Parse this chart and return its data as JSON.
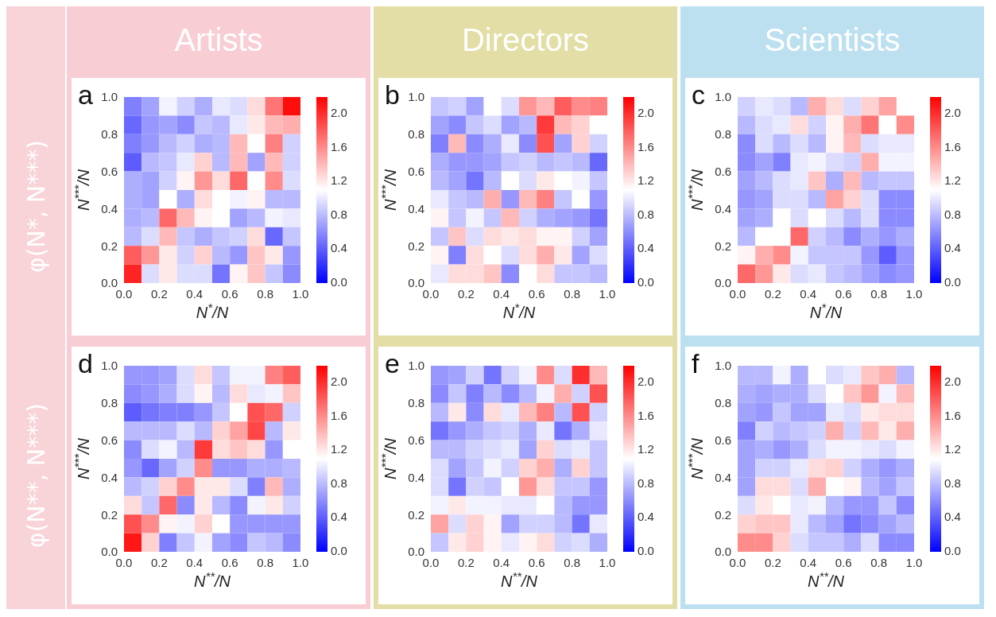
{
  "chart_data": [
    {
      "type": "heatmap",
      "title": "a",
      "subtitle": "Artists",
      "annotations": [
        "φ(N*, N***)"
      ],
      "xlabel": "N$^{*}$/N",
      "ylabel": "N$^{***}$/N",
      "xlim": [
        0,
        1
      ],
      "ylim": [
        0,
        1
      ],
      "xticks": [
        {
          "value": 0,
          "label": "0.0"
        },
        {
          "value": 0.2,
          "label": "0.2"
        },
        {
          "value": 0.4,
          "label": "0.4"
        },
        {
          "value": 0.6,
          "label": "0.6"
        },
        {
          "value": 0.8,
          "label": "0.8"
        },
        {
          "value": 1,
          "label": "1.0"
        }
      ],
      "yticks": [
        {
          "value": 0,
          "label": "0.0"
        },
        {
          "value": 0.2,
          "label": "0.2"
        },
        {
          "value": 0.4,
          "label": "0.4"
        },
        {
          "value": 0.6,
          "label": "0.6"
        },
        {
          "value": 0.8,
          "label": "0.8"
        },
        {
          "value": 1,
          "label": "1.0"
        }
      ],
      "clim": [
        0,
        2.2
      ],
      "cticks": [
        {
          "value": 0,
          "label": "0.0"
        },
        {
          "value": 0.4,
          "label": "0.4"
        },
        {
          "value": 0.8,
          "label": "0.8"
        },
        {
          "value": 1.2,
          "label": "1.2"
        },
        {
          "value": 1.6,
          "label": "1.6"
        },
        {
          "value": 2,
          "label": "2.0"
        }
      ],
      "cells": [
        [
          0.55,
          0.7,
          1.05,
          0.9,
          0.75,
          1.0,
          0.95,
          1.25,
          1.7,
          2.15
        ],
        [
          0.45,
          0.65,
          0.7,
          0.6,
          0.85,
          0.8,
          1.0,
          1.2,
          1.4,
          1.45
        ],
        [
          0.55,
          0.65,
          0.8,
          0.9,
          0.75,
          0.8,
          1.4,
          1.1,
          1.65,
          0.9
        ],
        [
          0.4,
          0.8,
          0.85,
          1.0,
          1.3,
          0.8,
          1.4,
          0.7,
          1.4,
          0.9
        ],
        [
          0.75,
          0.7,
          0.9,
          1.15,
          1.55,
          1.25,
          1.75,
          1.1,
          1.6,
          0.95
        ],
        [
          0.75,
          0.7,
          1.1,
          0.75,
          1.25,
          1.1,
          1.05,
          1.15,
          0.8,
          0.8
        ],
        [
          0.75,
          0.8,
          1.75,
          1.4,
          1.15,
          1.1,
          0.7,
          0.8,
          1.05,
          1.0
        ],
        [
          0.8,
          0.95,
          1.4,
          0.85,
          0.75,
          0.85,
          0.9,
          1.25,
          0.45,
          0.85
        ],
        [
          1.8,
          1.55,
          1.2,
          0.9,
          1.3,
          0.8,
          0.65,
          1.35,
          1.2,
          0.65
        ],
        [
          2.05,
          0.95,
          1.2,
          0.95,
          0.95,
          0.5,
          1.15,
          1.35,
          0.85,
          0.6
        ]
      ]
    },
    {
      "type": "heatmap",
      "title": "b",
      "subtitle": "Directors",
      "xlabel": "N$^{*}$/N",
      "ylabel": "N$^{***}$/N",
      "xlim": [
        0,
        1
      ],
      "ylim": [
        0,
        1
      ],
      "xticks": [
        {
          "value": 0,
          "label": "0.0"
        },
        {
          "value": 0.2,
          "label": "0.2"
        },
        {
          "value": 0.4,
          "label": "0.4"
        },
        {
          "value": 0.6,
          "label": "0.6"
        },
        {
          "value": 0.8,
          "label": "0.8"
        },
        {
          "value": 1,
          "label": "1.0"
        }
      ],
      "yticks": [
        {
          "value": 0,
          "label": "0.0"
        },
        {
          "value": 0.2,
          "label": "0.2"
        },
        {
          "value": 0.4,
          "label": "0.4"
        },
        {
          "value": 0.6,
          "label": "0.6"
        },
        {
          "value": 0.8,
          "label": "0.8"
        },
        {
          "value": 1,
          "label": "1.0"
        }
      ],
      "clim": [
        0,
        2.2
      ],
      "cticks": [
        {
          "value": 0,
          "label": "0.0"
        },
        {
          "value": 0.4,
          "label": "0.4"
        },
        {
          "value": 0.8,
          "label": "0.8"
        },
        {
          "value": 1.2,
          "label": "1.2"
        },
        {
          "value": 1.6,
          "label": "1.6"
        },
        {
          "value": 2,
          "label": "2.0"
        }
      ],
      "cells": [
        [
          0.85,
          0.9,
          0.7,
          1.1,
          0.95,
          1.55,
          1.4,
          1.8,
          1.6,
          1.65
        ],
        [
          0.7,
          0.6,
          0.85,
          0.95,
          0.7,
          0.8,
          1.95,
          1.4,
          1.3,
          1.1
        ],
        [
          0.55,
          1.4,
          0.6,
          0.75,
          1.0,
          0.6,
          1.85,
          0.7,
          1.3,
          0.9
        ],
        [
          0.75,
          0.65,
          0.65,
          0.7,
          0.85,
          0.9,
          0.8,
          0.85,
          0.8,
          0.45
        ],
        [
          0.8,
          0.7,
          0.5,
          0.8,
          1.1,
          0.95,
          1.2,
          1.1,
          1.05,
          0.85
        ],
        [
          1.0,
          0.85,
          0.8,
          1.45,
          0.65,
          1.4,
          1.65,
          0.85,
          1.1,
          0.65
        ],
        [
          1.15,
          0.85,
          1.05,
          0.85,
          1.4,
          0.9,
          0.75,
          0.7,
          0.65,
          0.5
        ],
        [
          0.85,
          1.35,
          0.95,
          1.25,
          1.2,
          1.25,
          1.15,
          1.15,
          0.9,
          0.7
        ],
        [
          1.15,
          0.55,
          1.25,
          1.1,
          0.95,
          1.25,
          1.45,
          1.2,
          0.7,
          0.95
        ],
        [
          1.0,
          1.25,
          1.25,
          1.35,
          0.6,
          1.1,
          1.25,
          0.85,
          0.85,
          0.8
        ]
      ]
    },
    {
      "type": "heatmap",
      "title": "c",
      "subtitle": "Scientists",
      "xlabel": "N$^{*}$/N",
      "ylabel": "N$^{***}$/N",
      "xlim": [
        0,
        1
      ],
      "ylim": [
        0,
        1
      ],
      "xticks": [
        {
          "value": 0,
          "label": "0.0"
        },
        {
          "value": 0.2,
          "label": "0.2"
        },
        {
          "value": 0.4,
          "label": "0.4"
        },
        {
          "value": 0.6,
          "label": "0.6"
        },
        {
          "value": 0.8,
          "label": "0.8"
        },
        {
          "value": 1,
          "label": "1.0"
        }
      ],
      "yticks": [
        {
          "value": 0,
          "label": "0.0"
        },
        {
          "value": 0.2,
          "label": "0.2"
        },
        {
          "value": 0.4,
          "label": "0.4"
        },
        {
          "value": 0.6,
          "label": "0.6"
        },
        {
          "value": 0.8,
          "label": "0.8"
        },
        {
          "value": 1,
          "label": "1.0"
        }
      ],
      "clim": [
        0,
        2.2
      ],
      "cticks": [
        {
          "value": 0,
          "label": "0.0"
        },
        {
          "value": 0.4,
          "label": "0.4"
        },
        {
          "value": 0.8,
          "label": "0.8"
        },
        {
          "value": 1.2,
          "label": "1.2"
        },
        {
          "value": 1.6,
          "label": "1.6"
        },
        {
          "value": 2,
          "label": "2.0"
        }
      ],
      "cells": [
        [
          0.9,
          1.0,
          0.95,
          0.8,
          1.45,
          1.25,
          0.95,
          1.3,
          1.5,
          null
        ],
        [
          0.8,
          0.95,
          1.0,
          1.25,
          0.9,
          1.15,
          1.45,
          1.7,
          1.1,
          1.6
        ],
        [
          0.6,
          0.95,
          0.8,
          0.95,
          0.8,
          1.15,
          1.4,
          0.95,
          1.0,
          1.0
        ],
        [
          0.6,
          0.7,
          0.55,
          1.0,
          1.05,
          0.95,
          0.9,
          1.45,
          1.05,
          1.05
        ],
        [
          0.7,
          0.8,
          0.95,
          1.0,
          1.35,
          0.75,
          1.4,
          0.8,
          0.85,
          0.85
        ],
        [
          0.65,
          0.7,
          0.95,
          0.95,
          0.8,
          1.5,
          1.3,
          0.95,
          0.6,
          0.6
        ],
        [
          0.7,
          0.75,
          1.1,
          0.95,
          1.1,
          0.95,
          0.8,
          0.95,
          0.6,
          0.6
        ],
        [
          0.8,
          1.1,
          1.1,
          1.75,
          0.9,
          0.8,
          0.6,
          0.75,
          0.65,
          0.75
        ],
        [
          1.15,
          1.45,
          1.6,
          1.05,
          0.85,
          0.85,
          0.85,
          0.65,
          0.4,
          0.65
        ],
        [
          1.75,
          1.55,
          1.2,
          0.95,
          1.0,
          0.85,
          0.8,
          0.7,
          0.6,
          0.65
        ]
      ]
    },
    {
      "type": "heatmap",
      "title": "d",
      "annotations": [
        "φ(N**, N***)"
      ],
      "xlabel": "N$^{**}$/N",
      "ylabel": "N$^{***}$/N",
      "xlim": [
        0,
        1
      ],
      "ylim": [
        0,
        1
      ],
      "xticks": [
        {
          "value": 0,
          "label": "0.0"
        },
        {
          "value": 0.2,
          "label": "0.2"
        },
        {
          "value": 0.4,
          "label": "0.4"
        },
        {
          "value": 0.6,
          "label": "0.6"
        },
        {
          "value": 0.8,
          "label": "0.8"
        },
        {
          "value": 1,
          "label": "1.0"
        }
      ],
      "yticks": [
        {
          "value": 0,
          "label": "0.0"
        },
        {
          "value": 0.2,
          "label": "0.2"
        },
        {
          "value": 0.4,
          "label": "0.4"
        },
        {
          "value": 0.6,
          "label": "0.6"
        },
        {
          "value": 0.8,
          "label": "0.8"
        },
        {
          "value": 1,
          "label": "1.0"
        }
      ],
      "clim": [
        0,
        2.2
      ],
      "cticks": [
        {
          "value": 0,
          "label": "0.0"
        },
        {
          "value": 0.4,
          "label": "0.4"
        },
        {
          "value": 0.8,
          "label": "0.8"
        },
        {
          "value": 1.2,
          "label": "1.2"
        },
        {
          "value": 1.6,
          "label": "1.6"
        },
        {
          "value": 2,
          "label": "2.0"
        }
      ],
      "cells": [
        [
          0.65,
          0.65,
          0.7,
          0.95,
          1.25,
          0.85,
          1.05,
          1.05,
          1.65,
          1.8
        ],
        [
          0.6,
          0.65,
          0.75,
          0.95,
          1.15,
          0.8,
          1.25,
          1.0,
          1.05,
          1.35
        ],
        [
          0.4,
          0.5,
          0.55,
          0.55,
          0.65,
          0.85,
          1.1,
          1.85,
          1.75,
          0.9
        ],
        [
          0.8,
          0.8,
          0.8,
          0.95,
          0.8,
          1.3,
          1.5,
          1.9,
          0.8,
          1.2
        ],
        [
          0.6,
          0.95,
          1.05,
          0.8,
          1.95,
          1.25,
          1.35,
          1.25,
          0.65,
          1.1
        ],
        [
          0.65,
          0.45,
          0.7,
          0.9,
          1.6,
          0.65,
          0.65,
          0.75,
          0.75,
          0.8
        ],
        [
          0.8,
          0.9,
          1.3,
          1.6,
          1.2,
          1.2,
          0.95,
          0.55,
          1.4,
          0.75
        ],
        [
          1.25,
          0.85,
          1.75,
          0.6,
          1.2,
          0.8,
          0.6,
          1.05,
          1.2,
          0.9
        ],
        [
          1.85,
          1.6,
          1.15,
          1.05,
          1.3,
          1.1,
          0.65,
          0.65,
          0.65,
          0.65
        ],
        [
          2.1,
          1.3,
          0.55,
          0.85,
          1.05,
          0.7,
          0.6,
          0.85,
          0.8,
          0.6
        ]
      ]
    },
    {
      "type": "heatmap",
      "title": "e",
      "xlabel": "N$^{**}$/N",
      "ylabel": "N$^{***}$/N",
      "xlim": [
        0,
        1
      ],
      "ylim": [
        0,
        1
      ],
      "xticks": [
        {
          "value": 0,
          "label": "0.0"
        },
        {
          "value": 0.2,
          "label": "0.2"
        },
        {
          "value": 0.4,
          "label": "0.4"
        },
        {
          "value": 0.6,
          "label": "0.6"
        },
        {
          "value": 0.8,
          "label": "0.8"
        },
        {
          "value": 1,
          "label": "1.0"
        }
      ],
      "yticks": [
        {
          "value": 0,
          "label": "0.0"
        },
        {
          "value": 0.2,
          "label": "0.2"
        },
        {
          "value": 0.4,
          "label": "0.4"
        },
        {
          "value": 0.6,
          "label": "0.6"
        },
        {
          "value": 0.8,
          "label": "0.8"
        },
        {
          "value": 1,
          "label": "1.0"
        }
      ],
      "clim": [
        0,
        2.2
      ],
      "cticks": [
        {
          "value": 0,
          "label": "0.0"
        },
        {
          "value": 0.4,
          "label": "0.4"
        },
        {
          "value": 0.8,
          "label": "0.8"
        },
        {
          "value": 1.2,
          "label": "1.2"
        },
        {
          "value": 1.6,
          "label": "1.6"
        },
        {
          "value": 2,
          "label": "2.0"
        }
      ],
      "cells": [
        [
          0.65,
          0.7,
          0.9,
          0.5,
          0.9,
          1.05,
          1.6,
          0.95,
          2.0,
          1.4
        ],
        [
          0.6,
          0.85,
          0.55,
          0.8,
          0.6,
          0.8,
          1.05,
          1.45,
          0.9,
          1.85
        ],
        [
          0.8,
          1.2,
          0.6,
          1.25,
          1.0,
          1.4,
          1.65,
          0.8,
          1.85,
          0.9
        ],
        [
          0.5,
          0.65,
          0.75,
          0.85,
          0.9,
          0.75,
          1.0,
          0.5,
          0.75,
          1.0
        ],
        [
          0.8,
          0.8,
          0.9,
          0.95,
          1.0,
          0.7,
          1.3,
          0.95,
          1.0,
          0.85
        ],
        [
          0.95,
          0.7,
          0.85,
          1.05,
          0.9,
          1.3,
          1.45,
          0.75,
          1.3,
          0.85
        ],
        [
          0.95,
          0.5,
          0.9,
          0.85,
          1.1,
          1.55,
          1.25,
          0.85,
          0.85,
          0.65
        ],
        [
          1.05,
          1.2,
          1.05,
          1.05,
          1.0,
          1.0,
          1.1,
          0.8,
          0.65,
          0.65
        ],
        [
          1.5,
          0.95,
          1.3,
          1.15,
          0.7,
          0.9,
          0.9,
          0.8,
          0.5,
          1.0
        ],
        [
          0.85,
          1.2,
          1.3,
          1.15,
          1.0,
          1.15,
          1.25,
          0.9,
          0.95,
          0.75
        ]
      ]
    },
    {
      "type": "heatmap",
      "title": "f",
      "xlabel": "N$^{**}$/N",
      "ylabel": "N$^{***}$/N",
      "xlim": [
        0,
        1
      ],
      "ylim": [
        0,
        1
      ],
      "xticks": [
        {
          "value": 0,
          "label": "0.0"
        },
        {
          "value": 0.2,
          "label": "0.2"
        },
        {
          "value": 0.4,
          "label": "0.4"
        },
        {
          "value": 0.6,
          "label": "0.6"
        },
        {
          "value": 0.8,
          "label": "0.8"
        },
        {
          "value": 1,
          "label": "1.0"
        }
      ],
      "yticks": [
        {
          "value": 0,
          "label": "0.0"
        },
        {
          "value": 0.2,
          "label": "0.2"
        },
        {
          "value": 0.4,
          "label": "0.4"
        },
        {
          "value": 0.6,
          "label": "0.6"
        },
        {
          "value": 0.8,
          "label": "0.8"
        },
        {
          "value": 1,
          "label": "1.0"
        }
      ],
      "clim": [
        0,
        2.2
      ],
      "cticks": [
        {
          "value": 0,
          "label": "0.0"
        },
        {
          "value": 0.4,
          "label": "0.4"
        },
        {
          "value": 0.8,
          "label": "0.8"
        },
        {
          "value": 1.2,
          "label": "1.2"
        },
        {
          "value": 1.6,
          "label": "1.6"
        },
        {
          "value": 2,
          "label": "2.0"
        }
      ],
      "cells": [
        [
          0.8,
          0.8,
          1.05,
          0.75,
          1.1,
          0.95,
          1.0,
          1.35,
          1.45,
          0.8
        ],
        [
          0.75,
          0.7,
          0.75,
          0.75,
          0.95,
          1.1,
          1.35,
          1.55,
          1.05,
          1.4
        ],
        [
          0.7,
          0.65,
          0.85,
          0.7,
          0.7,
          1.0,
          0.95,
          1.2,
          1.25,
          1.25
        ],
        [
          0.55,
          0.9,
          0.8,
          0.85,
          0.9,
          1.45,
          0.9,
          1.4,
          1.2,
          1.45
        ],
        [
          0.7,
          0.75,
          0.65,
          0.75,
          0.95,
          1.05,
          1.05,
          1.0,
          0.95,
          1.05
        ],
        [
          0.7,
          0.9,
          0.9,
          1.0,
          1.25,
          1.3,
          0.9,
          0.75,
          0.65,
          0.75
        ],
        [
          0.7,
          1.25,
          1.25,
          0.95,
          1.45,
          1.1,
          1.15,
          0.8,
          0.7,
          0.85
        ],
        [
          0.95,
          1.2,
          1.1,
          1.0,
          1.05,
          0.8,
          0.65,
          0.65,
          0.85,
          0.6
        ],
        [
          1.3,
          1.35,
          1.35,
          1.0,
          0.8,
          0.7,
          0.5,
          0.6,
          0.7,
          0.8
        ],
        [
          1.6,
          1.6,
          1.3,
          0.95,
          0.85,
          0.85,
          0.75,
          0.95,
          0.6,
          0.6
        ]
      ]
    }
  ]
}
